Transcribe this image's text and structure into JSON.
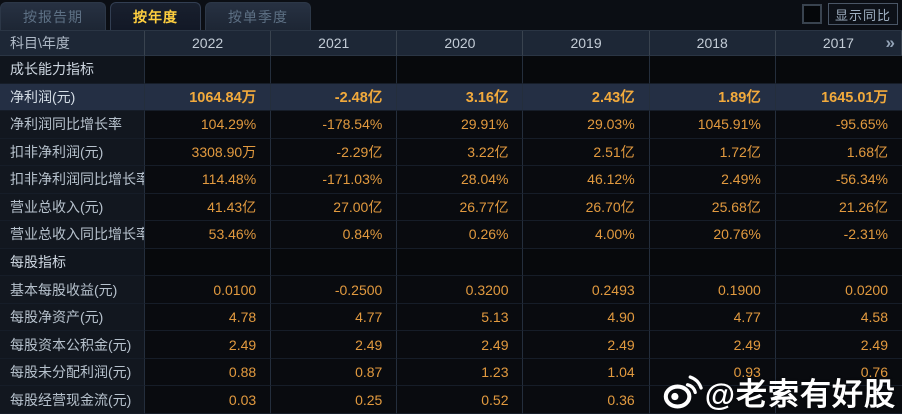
{
  "tabs": [
    {
      "label": "按报告期",
      "active": false
    },
    {
      "label": "按年度",
      "active": true
    },
    {
      "label": "按单季度",
      "active": false
    }
  ],
  "controls": {
    "show_yoy_label": "显示同比"
  },
  "table": {
    "corner_label": "科目\\年度",
    "years": [
      "2022",
      "2021",
      "2020",
      "2019",
      "2018",
      "2017"
    ],
    "more_icon": "»",
    "rows": [
      {
        "type": "section",
        "label": "成长能力指标",
        "values": [
          "",
          "",
          "",
          "",
          "",
          ""
        ]
      },
      {
        "type": "highlight",
        "label": "净利润(元)",
        "values": [
          "1064.84万",
          "-2.48亿",
          "3.16亿",
          "2.43亿",
          "1.89亿",
          "1645.01万"
        ]
      },
      {
        "type": "data",
        "label": "净利润同比增长率",
        "values": [
          "104.29%",
          "-178.54%",
          "29.91%",
          "29.03%",
          "1045.91%",
          "-95.65%"
        ]
      },
      {
        "type": "data",
        "label": "扣非净利润(元)",
        "values": [
          "3308.90万",
          "-2.29亿",
          "3.22亿",
          "2.51亿",
          "1.72亿",
          "1.68亿"
        ]
      },
      {
        "type": "data",
        "label": "扣非净利润同比增长率",
        "values": [
          "114.48%",
          "-171.03%",
          "28.04%",
          "46.12%",
          "2.49%",
          "-56.34%"
        ]
      },
      {
        "type": "data",
        "label": "营业总收入(元)",
        "values": [
          "41.43亿",
          "27.00亿",
          "26.77亿",
          "26.70亿",
          "25.68亿",
          "21.26亿"
        ]
      },
      {
        "type": "data",
        "label": "营业总收入同比增长率",
        "values": [
          "53.46%",
          "0.84%",
          "0.26%",
          "4.00%",
          "20.76%",
          "-2.31%"
        ]
      },
      {
        "type": "section",
        "label": "每股指标",
        "values": [
          "",
          "",
          "",
          "",
          "",
          ""
        ]
      },
      {
        "type": "data",
        "label": "基本每股收益(元)",
        "values": [
          "0.0100",
          "-0.2500",
          "0.3200",
          "0.2493",
          "0.1900",
          "0.0200"
        ]
      },
      {
        "type": "data",
        "label": "每股净资产(元)",
        "values": [
          "4.78",
          "4.77",
          "5.13",
          "4.90",
          "4.77",
          "4.58"
        ]
      },
      {
        "type": "data",
        "label": "每股资本公积金(元)",
        "values": [
          "2.49",
          "2.49",
          "2.49",
          "2.49",
          "2.49",
          "2.49"
        ]
      },
      {
        "type": "data",
        "label": "每股未分配利润(元)",
        "values": [
          "0.88",
          "0.87",
          "1.23",
          "1.04",
          "0.93",
          "0.76"
        ]
      },
      {
        "type": "data",
        "label": "每股经营现金流(元)",
        "values": [
          "0.03",
          "0.25",
          "0.52",
          "0.36",
          "",
          ""
        ]
      }
    ]
  },
  "watermark": {
    "icon": "weibo-logo-icon",
    "text": "@老索有好股"
  },
  "colors": {
    "background": "#0a0d12",
    "header_bg": "#1d2736",
    "highlight_row_bg": "#242f44",
    "value_orange": "#e29a3f",
    "highlight_value_gold": "#f2aa3c",
    "active_tab_text": "#ffcf3f",
    "label_text": "#b6c1cc"
  }
}
